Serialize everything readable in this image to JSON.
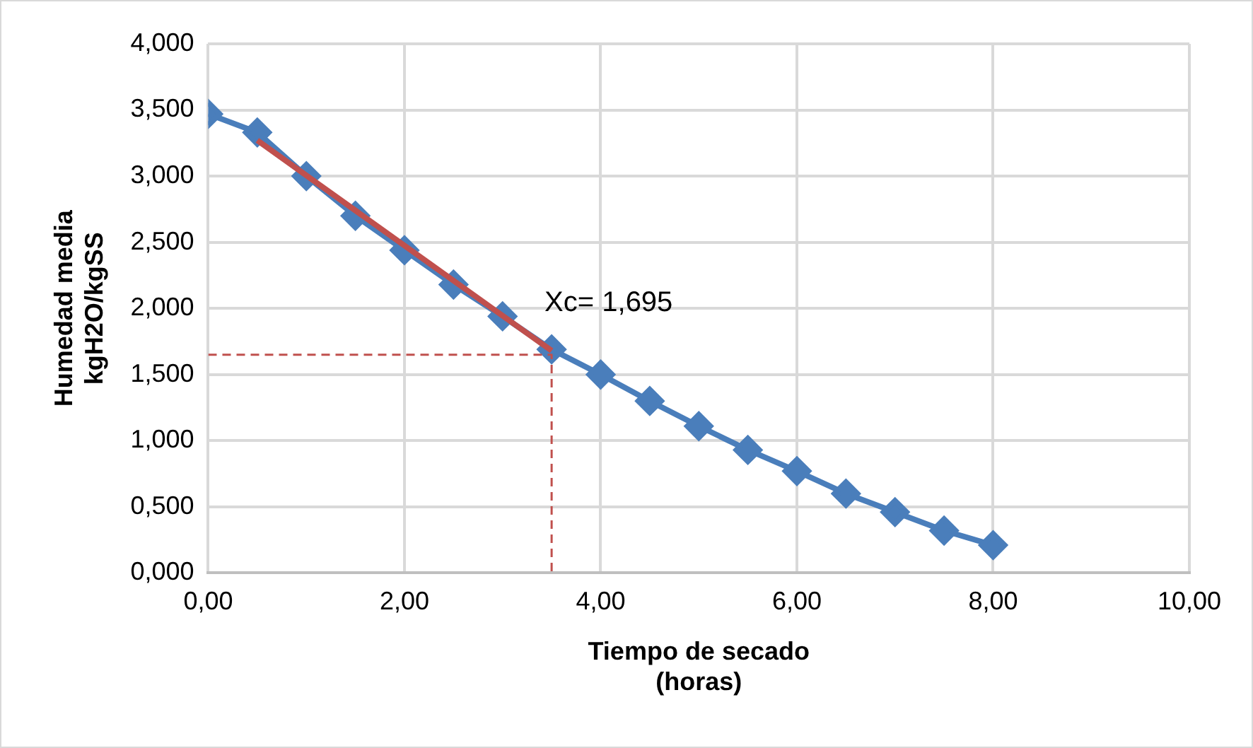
{
  "chart_data": {
    "type": "line",
    "xlabel": "Tiempo de secado\n(horas)",
    "ylabel": "Humedad media\nkgH2O/kgSS",
    "x": [
      0,
      0.5,
      1,
      1.5,
      2,
      2.5,
      3,
      3.5,
      4,
      4.5,
      5,
      5.5,
      6,
      6.5,
      7,
      7.5,
      8
    ],
    "series": [
      {
        "color": "#4a7ebb",
        "marker": "diamond",
        "values": [
          3.47,
          3.33,
          3.0,
          2.7,
          2.44,
          2.18,
          1.94,
          1.69,
          1.5,
          1.3,
          1.11,
          0.93,
          0.77,
          0.6,
          0.46,
          0.32,
          0.21
        ]
      },
      {
        "type": "line",
        "color": "#c0504d",
        "marker": "none",
        "x": [
          0.5,
          3.5
        ],
        "values": [
          3.27,
          1.68
        ]
      },
      {
        "type": "line",
        "color": "#c0504d",
        "marker": "none",
        "line_style": "dashed",
        "x": [
          0,
          3.5,
          3.5
        ],
        "values": [
          1.65,
          1.65,
          0
        ]
      }
    ],
    "xlim": [
      0,
      10
    ],
    "xticks": [
      {
        "value": 0,
        "label": "0,00"
      },
      {
        "value": 2,
        "label": "2,00"
      },
      {
        "value": 4,
        "label": "4,00"
      },
      {
        "value": 6,
        "label": "6,00"
      },
      {
        "value": 8,
        "label": "8,00"
      },
      {
        "value": 10,
        "label": "10,00"
      }
    ],
    "ylim": [
      0,
      4
    ],
    "yticks": [
      {
        "value": 0,
        "label": "0,000"
      },
      {
        "value": 0.5,
        "label": "0,500"
      },
      {
        "value": 1,
        "label": "1,000"
      },
      {
        "value": 1.5,
        "label": "1,500"
      },
      {
        "value": 2,
        "label": "2,000"
      },
      {
        "value": 2.5,
        "label": "2,500"
      },
      {
        "value": 3,
        "label": "3,000"
      },
      {
        "value": 3.5,
        "label": "3,500"
      },
      {
        "value": 4,
        "label": "4,000"
      }
    ],
    "annotations": [
      {
        "text": "Xc= 1,695",
        "x": 3.5,
        "y": 1.695
      }
    ],
    "grid": true,
    "legend": false
  }
}
